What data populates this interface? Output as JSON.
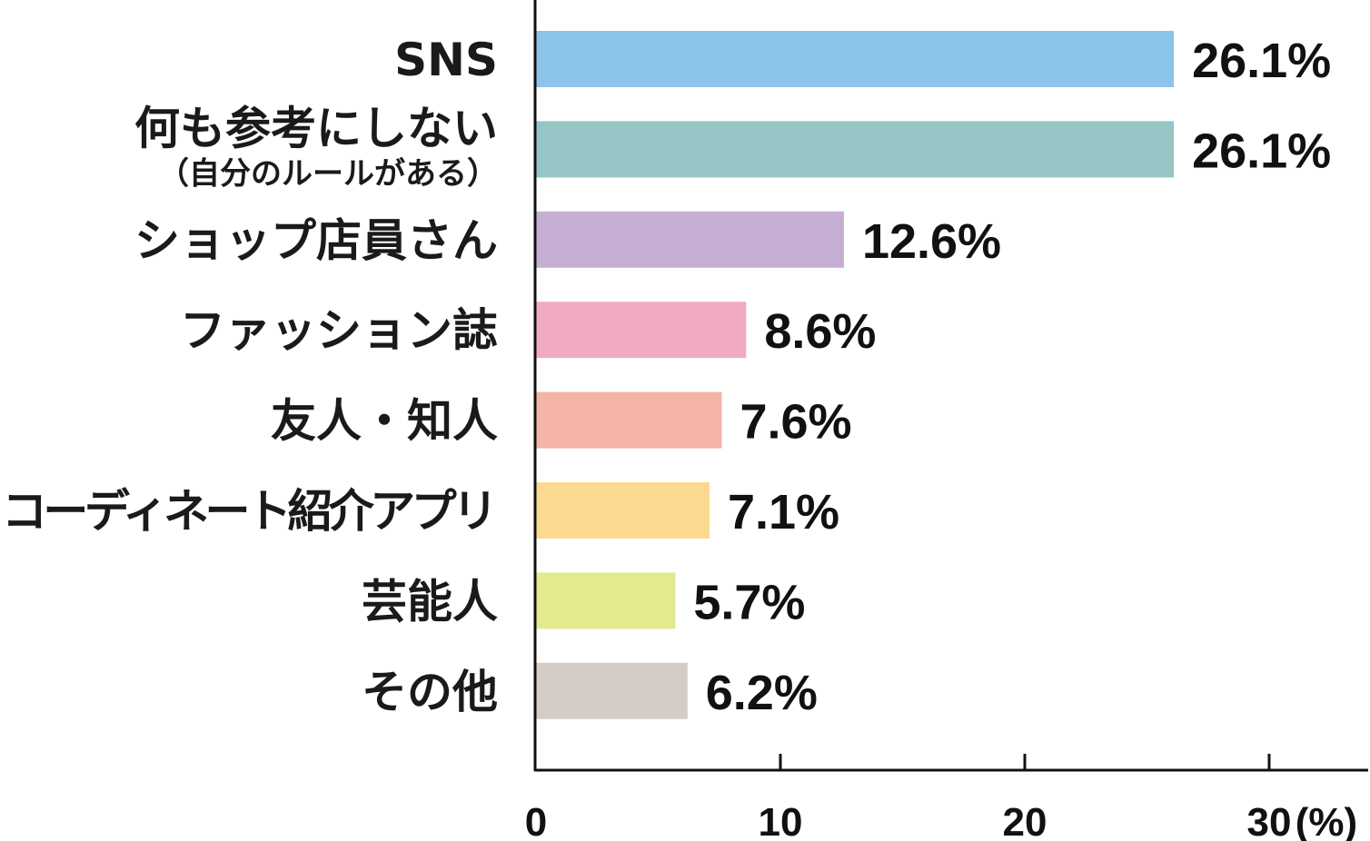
{
  "chart_data": {
    "type": "bar",
    "orientation": "horizontal",
    "categories": [
      {
        "label": "SNS"
      },
      {
        "label": "何も参考にしない",
        "sublabel": "（自分のルールがある）"
      },
      {
        "label": "ショップ店員さん"
      },
      {
        "label": "ファッション誌"
      },
      {
        "label": "友人・知人"
      },
      {
        "label": "コーディネート紹介アプリ"
      },
      {
        "label": "芸能人"
      },
      {
        "label": "その他"
      }
    ],
    "values": [
      26.1,
      26.1,
      12.6,
      8.6,
      7.6,
      7.1,
      5.7,
      6.2
    ],
    "value_labels": [
      "26.1%",
      "26.1%",
      "12.6%",
      "8.6%",
      "7.6%",
      "7.1%",
      "5.7%",
      "6.2%"
    ],
    "colors": [
      "#8cc4ea",
      "#95c5c4",
      "#c6aed2",
      "#f0abc0",
      "#f4b4a6",
      "#fcd990",
      "#e3e98d",
      "#d6ccc6"
    ],
    "xlim": [
      0,
      34
    ],
    "xticks": [
      0,
      10,
      20,
      30
    ],
    "xtick_labels": [
      "0",
      "10",
      "20",
      "30"
    ],
    "xunit": "(%)",
    "title": "",
    "xlabel": "",
    "ylabel": "",
    "grid": false,
    "legend": "none"
  }
}
